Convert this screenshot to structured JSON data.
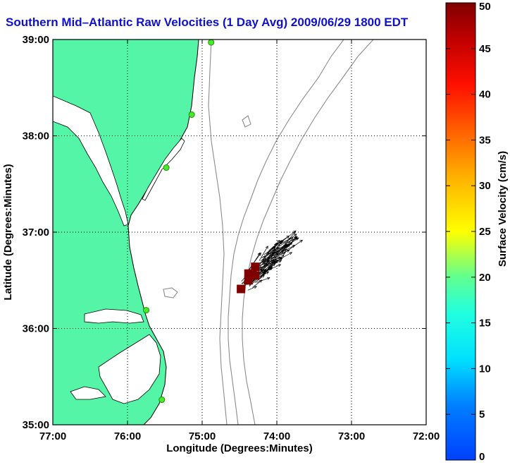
{
  "title": "Southern Mid–Atlantic Raw Velocities (1 Day Avg) 2009/06/29 1800 EDT",
  "map": {
    "x_label": "Longitude (Degrees:Minutes)",
    "y_label": "Latitude (Degrees:Minutes)",
    "x_ticks": [
      "77:00",
      "76:00",
      "75:00",
      "74:00",
      "73:00",
      "72:00"
    ],
    "y_ticks": [
      "39:00",
      "38:00",
      "37:00",
      "36:00",
      "35:00"
    ],
    "lon_range": [
      -77,
      -72
    ],
    "lat_range": [
      35,
      39
    ],
    "grid": "dotted",
    "land_color": "#55f5a8",
    "stations": [
      {
        "lon": -74.88,
        "lat": 38.97
      },
      {
        "lon": -75.14,
        "lat": 38.22
      },
      {
        "lon": -75.48,
        "lat": 37.67
      },
      {
        "lon": -75.75,
        "lat": 36.19
      },
      {
        "lon": -75.54,
        "lat": 35.26
      }
    ],
    "high_velocity_cells": [
      {
        "lon": -74.48,
        "lat": 36.41
      },
      {
        "lon": -74.38,
        "lat": 36.5
      },
      {
        "lon": -74.38,
        "lat": 36.57
      },
      {
        "lon": -74.29,
        "lat": 36.55
      },
      {
        "lon": -74.29,
        "lat": 36.64
      }
    ]
  },
  "colorbar": {
    "label": "Surface Velocity (cm/s)",
    "ticks": [
      "0",
      "5",
      "10",
      "15",
      "20",
      "25",
      "30",
      "35",
      "40",
      "45",
      "50"
    ],
    "range": [
      0,
      50
    ]
  }
}
